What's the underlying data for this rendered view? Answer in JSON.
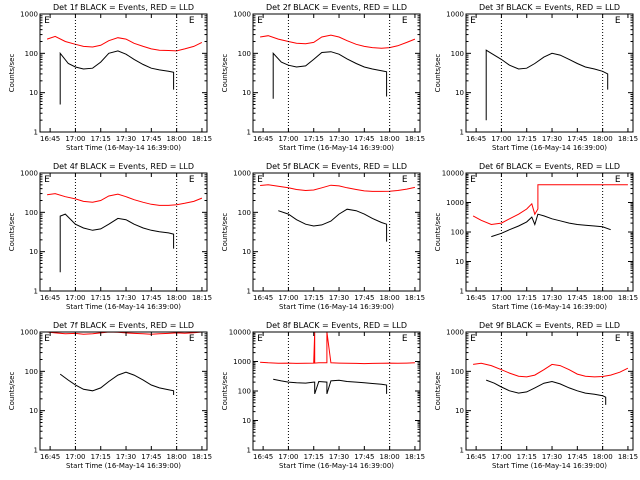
{
  "figure": {
    "series_names": [
      "Events",
      "LLD"
    ],
    "colors": {
      "events": "#000000",
      "lld": "#ff0000",
      "axes": "#000000",
      "background": "#ffffff"
    }
  },
  "chart_data": [
    {
      "type": "line",
      "title": "Det 1f BLACK = Events, RED = LLD",
      "xlabel": "Start Time (16-May-14 16:39:00)",
      "ylabel": "Counts/sec",
      "xticks": [
        "16:45",
        "17:00",
        "17:15",
        "17:30",
        "17:45",
        "18:00",
        "18:15"
      ],
      "yticks": [
        "1",
        "10",
        "100",
        "1000"
      ],
      "ylim": [
        1,
        1000
      ],
      "log_y": true,
      "ecut_label": "E",
      "grid": false,
      "series": [
        {
          "name": "Events",
          "color": "#000000",
          "x": [
            16.85,
            16.85,
            16.93,
            17.0,
            17.08,
            17.17,
            17.25,
            17.33,
            17.42,
            17.5,
            17.58,
            17.67,
            17.75,
            17.83,
            17.92,
            17.97,
            17.97
          ],
          "y": [
            5,
            100,
            55,
            45,
            40,
            42,
            60,
            100,
            115,
            95,
            70,
            52,
            42,
            38,
            35,
            33,
            12
          ]
        },
        {
          "name": "LLD",
          "color": "#ff0000",
          "x": [
            16.72,
            16.8,
            16.9,
            17.0,
            17.08,
            17.17,
            17.25,
            17.33,
            17.42,
            17.5,
            17.58,
            17.67,
            17.75,
            17.83,
            17.92,
            18.0,
            18.08,
            18.17,
            18.25
          ],
          "y": [
            230,
            270,
            200,
            170,
            150,
            145,
            160,
            210,
            250,
            230,
            180,
            150,
            130,
            120,
            118,
            115,
            130,
            150,
            190
          ]
        }
      ]
    },
    {
      "type": "line",
      "title": "Det 2f BLACK = Events, RED = LLD",
      "xlabel": "Start Time (16-May-14 16:39:00)",
      "ylabel": "Counts/sec",
      "xticks": [
        "16:45",
        "17:00",
        "17:15",
        "17:30",
        "17:45",
        "18:00",
        "18:15"
      ],
      "yticks": [
        "1",
        "10",
        "100",
        "1000"
      ],
      "ylim": [
        1,
        1000
      ],
      "log_y": true,
      "ecut_label": "E",
      "grid": false,
      "series": [
        {
          "name": "Events",
          "color": "#000000",
          "x": [
            16.85,
            16.85,
            16.93,
            17.0,
            17.08,
            17.17,
            17.25,
            17.33,
            17.42,
            17.5,
            17.58,
            17.67,
            17.75,
            17.83,
            17.92,
            17.97,
            17.97
          ],
          "y": [
            7,
            100,
            60,
            50,
            45,
            48,
            70,
            105,
            110,
            95,
            72,
            55,
            45,
            40,
            36,
            34,
            8
          ]
        },
        {
          "name": "LLD",
          "color": "#ff0000",
          "x": [
            16.72,
            16.8,
            16.9,
            17.0,
            17.08,
            17.17,
            17.25,
            17.33,
            17.42,
            17.5,
            17.58,
            17.67,
            17.75,
            17.83,
            17.92,
            18.0,
            18.08,
            18.17,
            18.25
          ],
          "y": [
            260,
            280,
            230,
            200,
            180,
            175,
            190,
            260,
            290,
            260,
            210,
            170,
            150,
            140,
            135,
            140,
            155,
            190,
            230
          ]
        }
      ]
    },
    {
      "type": "line",
      "title": "Det 3f BLACK = Events, RED = LLD",
      "xlabel": "Start Time (16-May-14 16:39:00)",
      "ylabel": "Counts/sec",
      "xticks": [
        "16:45",
        "17:00",
        "17:15",
        "17:30",
        "17:45",
        "18:00",
        "18:15"
      ],
      "yticks": [
        "1",
        "10",
        "100",
        "1000"
      ],
      "ylim": [
        1,
        1000
      ],
      "log_y": true,
      "ecut_label": "E",
      "grid": false,
      "series": [
        {
          "name": "Events",
          "color": "#000000",
          "x": [
            16.85,
            16.85,
            16.9,
            17.0,
            17.08,
            17.17,
            17.25,
            17.33,
            17.42,
            17.5,
            17.58,
            17.67,
            17.75,
            17.83,
            17.92,
            18.0,
            18.05,
            18.05
          ],
          "y": [
            2,
            120,
            100,
            70,
            50,
            40,
            42,
            55,
            80,
            100,
            90,
            70,
            55,
            45,
            40,
            35,
            30,
            12
          ]
        }
      ]
    },
    {
      "type": "line",
      "title": "Det 4f BLACK = Events, RED = LLD",
      "xlabel": "Start Time (16-May-14 16:39:00)",
      "ylabel": "Counts/sec",
      "xticks": [
        "16:45",
        "17:00",
        "17:15",
        "17:30",
        "17:45",
        "18:00",
        "18:15"
      ],
      "yticks": [
        "1",
        "10",
        "100",
        "1000"
      ],
      "ylim": [
        1,
        1000
      ],
      "log_y": true,
      "ecut_label": "E",
      "grid": false,
      "series": [
        {
          "name": "Events",
          "color": "#000000",
          "x": [
            16.85,
            16.85,
            16.9,
            17.0,
            17.08,
            17.17,
            17.25,
            17.33,
            17.42,
            17.5,
            17.58,
            17.67,
            17.75,
            17.83,
            17.92,
            17.97,
            17.97
          ],
          "y": [
            3,
            80,
            90,
            50,
            40,
            35,
            38,
            50,
            70,
            65,
            50,
            40,
            35,
            32,
            30,
            28,
            12
          ]
        },
        {
          "name": "LLD",
          "color": "#ff0000",
          "x": [
            16.72,
            16.8,
            16.9,
            17.0,
            17.08,
            17.17,
            17.25,
            17.33,
            17.42,
            17.5,
            17.58,
            17.67,
            17.75,
            17.83,
            17.92,
            18.0,
            18.08,
            18.17,
            18.25
          ],
          "y": [
            280,
            300,
            250,
            220,
            190,
            180,
            200,
            260,
            290,
            250,
            210,
            180,
            160,
            150,
            150,
            155,
            170,
            190,
            230
          ]
        }
      ]
    },
    {
      "type": "line",
      "title": "Det 5f BLACK = Events, RED = LLD",
      "xlabel": "Start Time (16-May-14 16:39:00)",
      "ylabel": "Counts/sec",
      "xticks": [
        "16:45",
        "17:00",
        "17:15",
        "17:30",
        "17:45",
        "18:00",
        "18:15"
      ],
      "yticks": [
        "1",
        "10",
        "100",
        "1000"
      ],
      "ylim": [
        1,
        1000
      ],
      "log_y": true,
      "ecut_label": "E",
      "grid": false,
      "series": [
        {
          "name": "Events",
          "color": "#000000",
          "x": [
            16.9,
            17.0,
            17.08,
            17.17,
            17.25,
            17.33,
            17.42,
            17.5,
            17.58,
            17.67,
            17.75,
            17.83,
            17.92,
            17.97,
            17.97
          ],
          "y": [
            110,
            90,
            65,
            50,
            45,
            48,
            60,
            90,
            120,
            110,
            90,
            70,
            55,
            50,
            18
          ]
        },
        {
          "name": "LLD",
          "color": "#ff0000",
          "x": [
            16.72,
            16.8,
            16.9,
            17.0,
            17.08,
            17.17,
            17.25,
            17.33,
            17.42,
            17.5,
            17.58,
            17.67,
            17.75,
            17.83,
            17.92,
            18.0,
            18.08,
            18.17,
            18.25
          ],
          "y": [
            480,
            500,
            460,
            420,
            380,
            360,
            370,
            420,
            490,
            470,
            420,
            380,
            350,
            340,
            340,
            345,
            360,
            390,
            430
          ]
        }
      ]
    },
    {
      "type": "line",
      "title": "Det 6f BLACK = Events, RED = LLD",
      "xlabel": "Start Time (16-May-14 16:39:00)",
      "ylabel": "Counts/sec",
      "xticks": [
        "16:45",
        "17:00",
        "17:15",
        "17:30",
        "17:45",
        "18:00",
        "18:15"
      ],
      "yticks": [
        "1",
        "10",
        "100",
        "1000",
        "10000"
      ],
      "ylim": [
        1,
        10000
      ],
      "log_y": true,
      "ecut_label": "E",
      "grid": false,
      "series": [
        {
          "name": "Events",
          "color": "#000000",
          "x": [
            16.9,
            17.0,
            17.08,
            17.17,
            17.25,
            17.3,
            17.33,
            17.36,
            17.42,
            17.5,
            17.58,
            17.67,
            17.75,
            17.83,
            17.92,
            18.0,
            18.08
          ],
          "y": [
            70,
            90,
            120,
            160,
            220,
            320,
            180,
            400,
            350,
            280,
            240,
            200,
            180,
            170,
            160,
            150,
            120
          ]
        },
        {
          "name": "LLD",
          "color": "#ff0000",
          "x": [
            16.72,
            16.8,
            16.9,
            17.0,
            17.08,
            17.17,
            17.25,
            17.3,
            17.33,
            17.36,
            17.36,
            17.5,
            17.67,
            17.83,
            18.0,
            18.17,
            18.25
          ],
          "y": [
            350,
            250,
            180,
            200,
            280,
            400,
            600,
            900,
            400,
            600,
            4000,
            4000,
            4000,
            4000,
            4000,
            4000,
            4000
          ]
        }
      ]
    },
    {
      "type": "line",
      "title": "Det 7f BLACK = Events, RED = LLD",
      "xlabel": "Start Time (16-May-14 16:39:00)",
      "ylabel": "Counts/sec",
      "xticks": [
        "16:45",
        "17:00",
        "17:15",
        "17:30",
        "17:45",
        "18:00",
        "18:15"
      ],
      "yticks": [
        "1",
        "10",
        "100",
        "1000"
      ],
      "ylim": [
        1,
        1000
      ],
      "log_y": true,
      "ecut_label": "E",
      "grid": false,
      "series": [
        {
          "name": "Events",
          "color": "#000000",
          "x": [
            16.85,
            16.93,
            17.0,
            17.08,
            17.17,
            17.25,
            17.33,
            17.42,
            17.5,
            17.58,
            17.67,
            17.75,
            17.83,
            17.92,
            17.97,
            17.97
          ],
          "y": [
            85,
            60,
            45,
            35,
            32,
            38,
            55,
            80,
            95,
            80,
            60,
            45,
            38,
            34,
            32,
            25
          ]
        },
        {
          "name": "LLD",
          "color": "#ff0000",
          "x": [
            16.72,
            16.8,
            16.9,
            17.0,
            17.08,
            17.17,
            17.25,
            17.33,
            17.42,
            17.5,
            17.58,
            17.67,
            17.75,
            17.83,
            17.92,
            18.0,
            18.08,
            18.17,
            18.25
          ],
          "y": [
            1000,
            950,
            900,
            920,
            880,
            900,
            950,
            1000,
            980,
            950,
            920,
            900,
            880,
            900,
            920,
            950,
            930,
            960,
            1000
          ]
        }
      ]
    },
    {
      "type": "line",
      "title": "Det 8f BLACK = Events, RED = LLD",
      "xlabel": "Start Time (16-May-14 16:39:00)",
      "ylabel": "Counts/sec",
      "xticks": [
        "16:45",
        "17:00",
        "17:15",
        "17:30",
        "17:45",
        "18:00",
        "18:15"
      ],
      "yticks": [
        "1",
        "10",
        "100",
        "1000",
        "10000"
      ],
      "ylim": [
        1,
        10000
      ],
      "log_y": true,
      "ecut_label": "E",
      "grid": false,
      "series": [
        {
          "name": "Events",
          "color": "#000000",
          "x": [
            16.85,
            16.93,
            17.0,
            17.08,
            17.17,
            17.25,
            17.26,
            17.26,
            17.3,
            17.38,
            17.38,
            17.42,
            17.5,
            17.58,
            17.67,
            17.75,
            17.83,
            17.92,
            17.97,
            17.97
          ],
          "y": [
            250,
            220,
            200,
            190,
            185,
            200,
            200,
            80,
            210,
            200,
            80,
            220,
            230,
            210,
            200,
            190,
            180,
            170,
            160,
            80
          ]
        },
        {
          "name": "LLD",
          "color": "#ff0000",
          "x": [
            16.72,
            16.8,
            16.9,
            17.0,
            17.08,
            17.17,
            17.25,
            17.26,
            17.26,
            17.3,
            17.38,
            17.38,
            17.42,
            17.5,
            17.58,
            17.67,
            17.75,
            17.83,
            17.92,
            18.0,
            18.08,
            18.17,
            18.25
          ],
          "y": [
            950,
            900,
            870,
            880,
            860,
            870,
            880,
            10000,
            880,
            900,
            900,
            10000,
            900,
            880,
            870,
            860,
            850,
            860,
            870,
            880,
            870,
            880,
            900
          ]
        }
      ]
    },
    {
      "type": "line",
      "title": "Det 9f BLACK = Events, RED = LLD",
      "xlabel": "Start Time (16-May-14 16:39:00)",
      "ylabel": "Counts/sec",
      "xticks": [
        "16:45",
        "17:00",
        "17:15",
        "17:30",
        "17:45",
        "18:00",
        "18:15"
      ],
      "yticks": [
        "1",
        "10",
        "100",
        "1000"
      ],
      "ylim": [
        1,
        1000
      ],
      "log_y": true,
      "ecut_label": "E",
      "grid": false,
      "series": [
        {
          "name": "Events",
          "color": "#000000",
          "x": [
            16.85,
            16.93,
            17.0,
            17.08,
            17.17,
            17.25,
            17.33,
            17.42,
            17.5,
            17.58,
            17.67,
            17.75,
            17.83,
            17.92,
            18.0,
            18.03,
            18.03
          ],
          "y": [
            60,
            50,
            40,
            32,
            28,
            30,
            38,
            50,
            55,
            48,
            38,
            32,
            28,
            26,
            24,
            22,
            14
          ]
        },
        {
          "name": "LLD",
          "color": "#ff0000",
          "x": [
            16.72,
            16.8,
            16.9,
            17.0,
            17.08,
            17.17,
            17.25,
            17.33,
            17.42,
            17.5,
            17.58,
            17.67,
            17.75,
            17.83,
            17.92,
            18.0,
            18.08,
            18.17,
            18.25
          ],
          "y": [
            150,
            160,
            140,
            110,
            90,
            75,
            72,
            80,
            110,
            150,
            140,
            110,
            85,
            75,
            72,
            74,
            80,
            95,
            120
          ]
        }
      ]
    }
  ]
}
